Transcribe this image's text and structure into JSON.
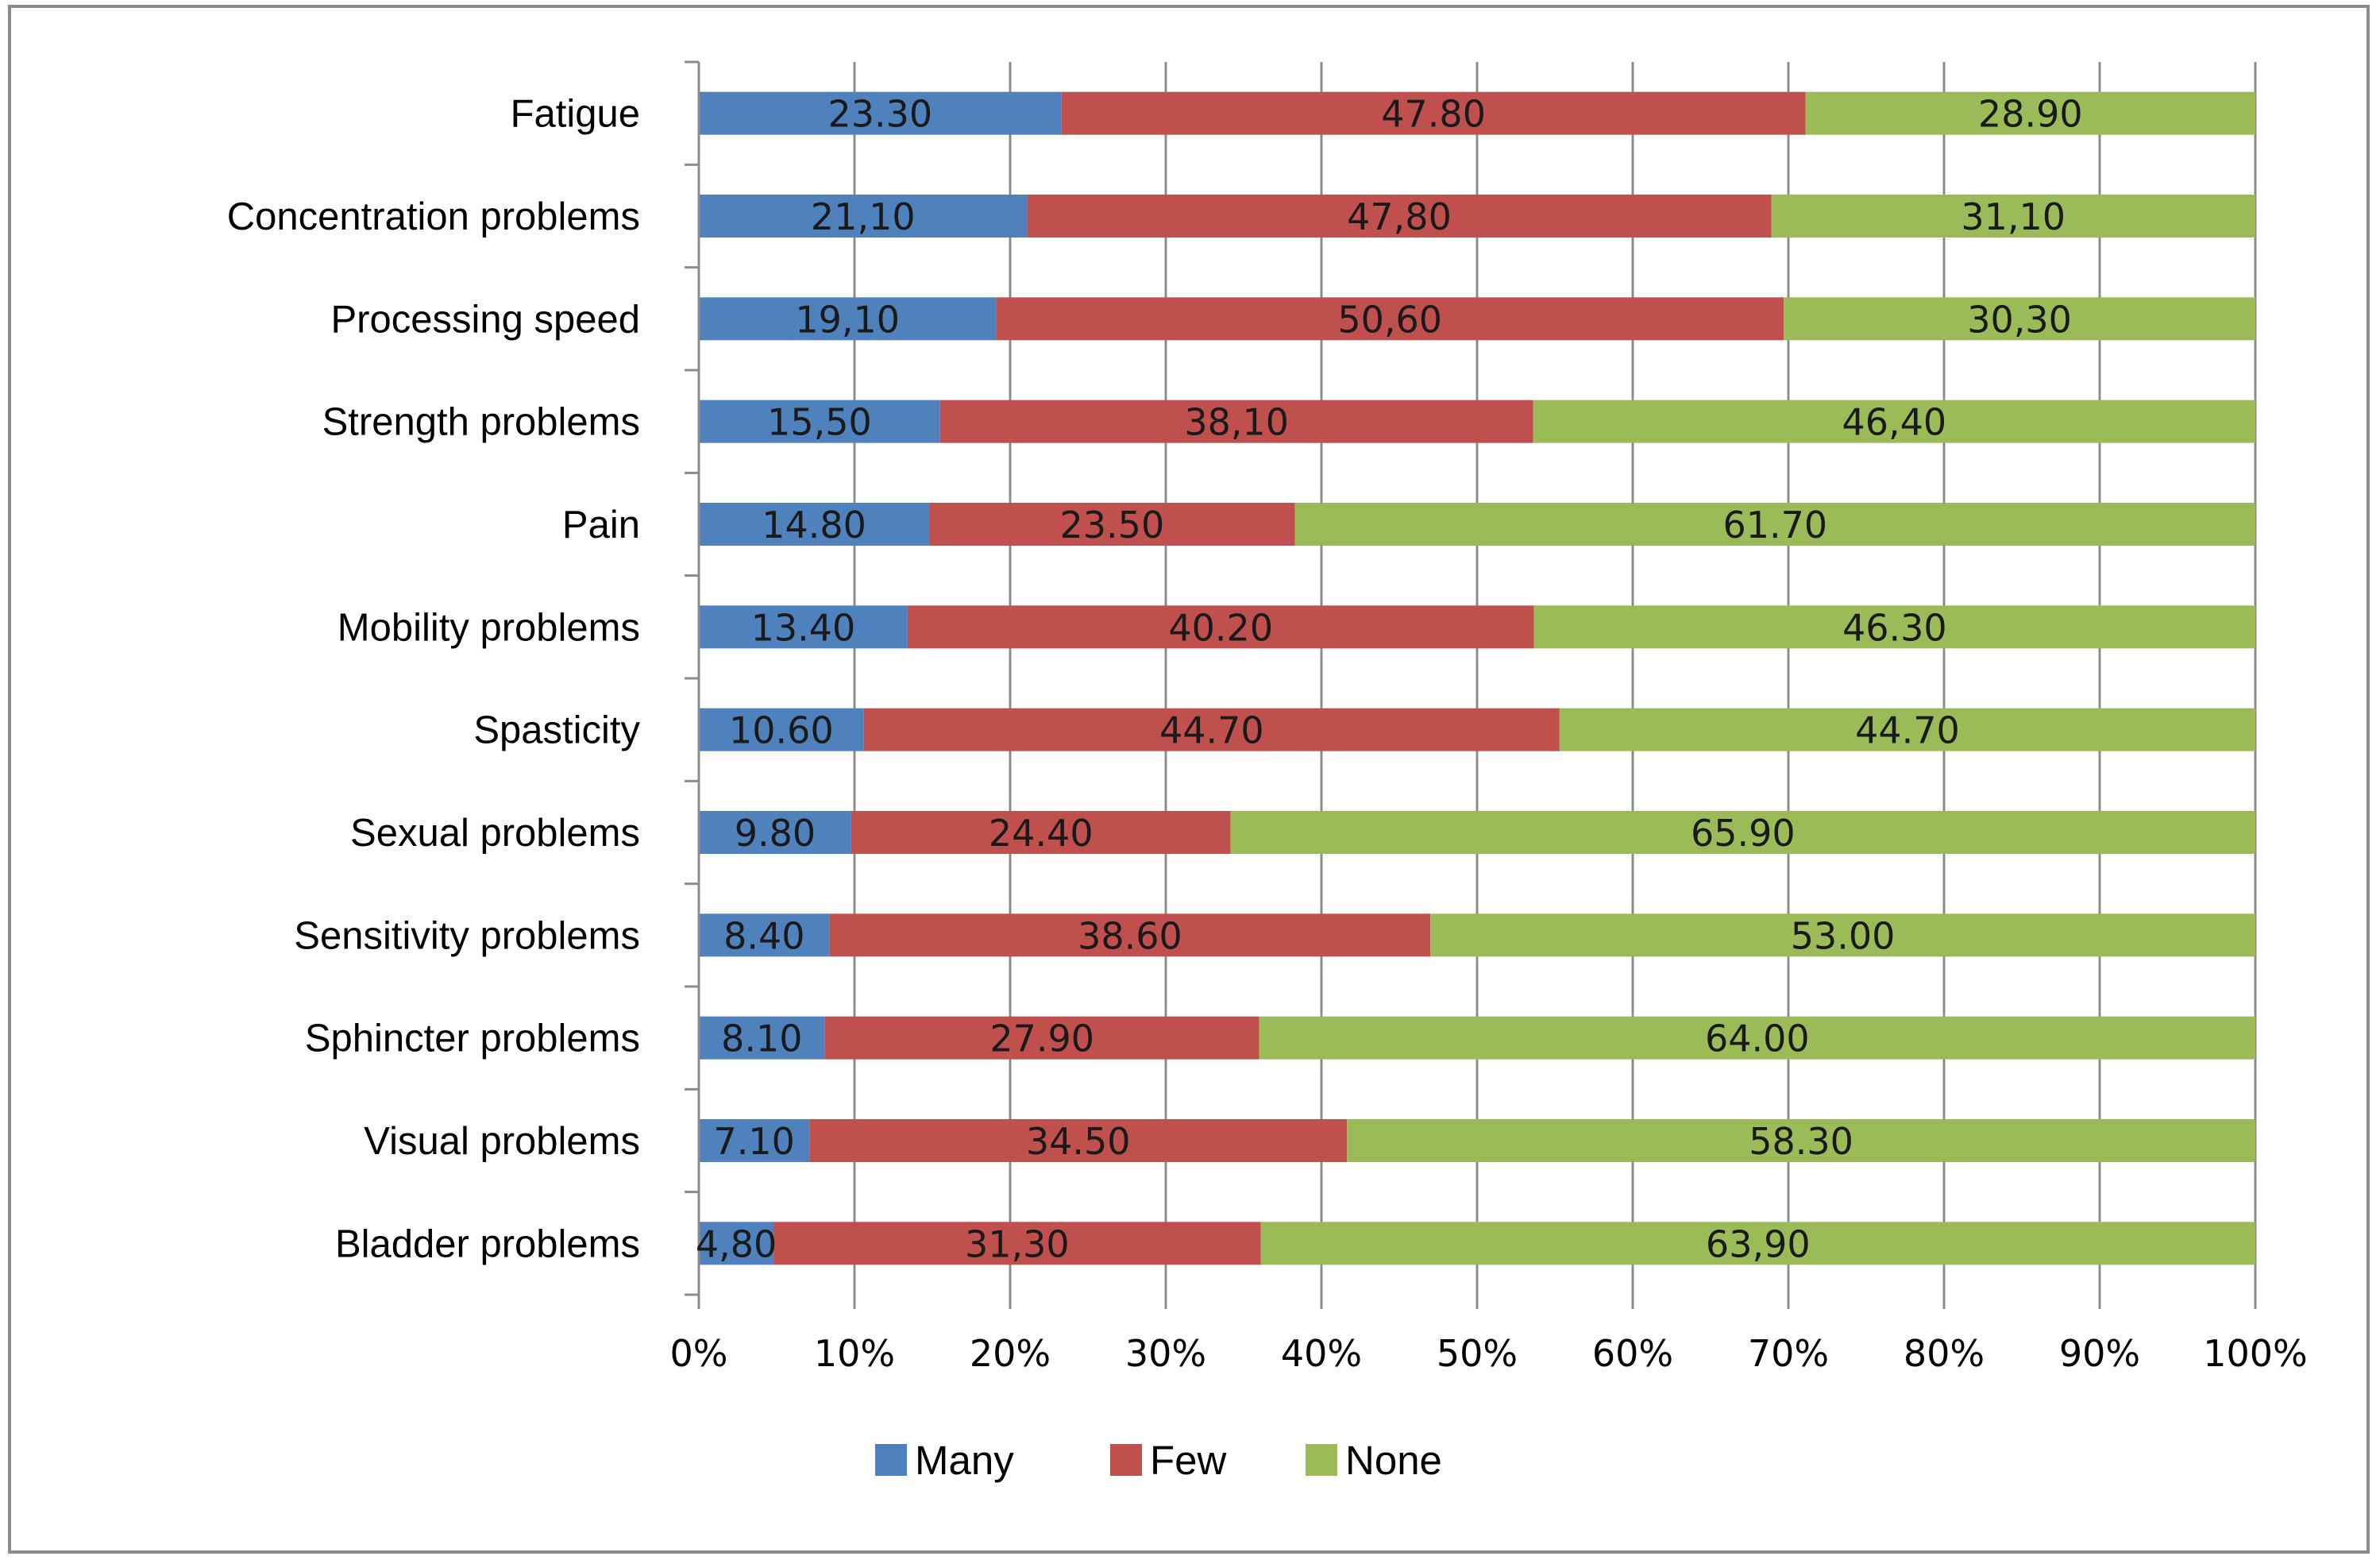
{
  "chart_data": {
    "type": "bar",
    "orientation": "horizontal",
    "stacked": "percent",
    "categories": [
      "Fatigue",
      "Concentration problems",
      "Processing speed",
      "Strength problems",
      "Pain",
      "Mobility problems",
      "Spasticity",
      "Sexual problems",
      "Sensitivity problems",
      "Sphincter problems",
      "Visual problems",
      "Bladder problems"
    ],
    "series": [
      {
        "name": "Many",
        "color": "#4f81bd",
        "values": [
          23.3,
          21.1,
          19.1,
          15.5,
          14.8,
          13.4,
          10.6,
          9.8,
          8.4,
          8.1,
          7.1,
          4.8
        ],
        "labels": [
          "23.30",
          "21,10",
          "19,10",
          "15,50",
          "14.80",
          "13.40",
          "10.60",
          "9.80",
          "8.40",
          "8.10",
          "7.10",
          "4,80"
        ]
      },
      {
        "name": "Few",
        "color": "#c0504d",
        "values": [
          47.8,
          47.8,
          50.6,
          38.1,
          23.5,
          40.2,
          44.7,
          24.4,
          38.6,
          27.9,
          34.5,
          31.3
        ],
        "labels": [
          "47.80",
          "47,80",
          "50,60",
          "38,10",
          "23.50",
          "40.20",
          "44.70",
          "24.40",
          "38.60",
          "27.90",
          "34.50",
          "31,30"
        ]
      },
      {
        "name": "None",
        "color": "#9bbb59",
        "values": [
          28.9,
          31.1,
          30.3,
          46.4,
          61.7,
          46.3,
          44.7,
          65.9,
          53.0,
          64.0,
          58.3,
          63.9
        ],
        "labels": [
          "28.90",
          "31,10",
          "30,30",
          "46,40",
          "61.70",
          "46.30",
          "44.70",
          "65.90",
          "53.00",
          "64.00",
          "58.30",
          "63,90"
        ]
      }
    ],
    "x_ticks": [
      "0%",
      "10%",
      "20%",
      "30%",
      "40%",
      "50%",
      "60%",
      "70%",
      "80%",
      "90%",
      "100%"
    ],
    "xlim": [
      0,
      100
    ],
    "grid": "vertical",
    "legend": "bottom"
  }
}
